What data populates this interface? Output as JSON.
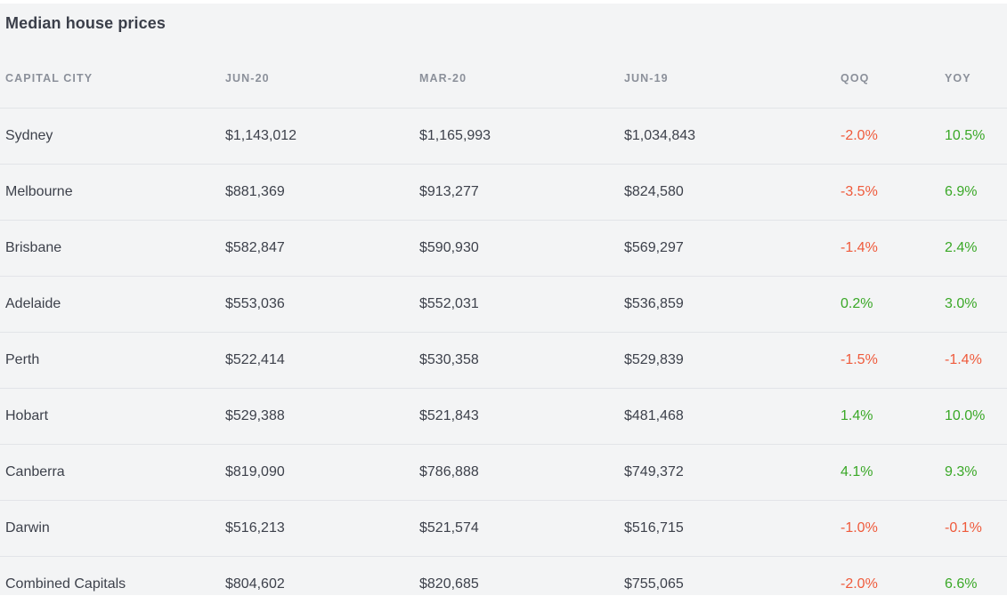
{
  "title": "Median house prices",
  "columns": {
    "city": "CAPITAL CITY",
    "jun20": "JUN-20",
    "mar20": "MAR-20",
    "jun19": "JUN-19",
    "qoq": "QOQ",
    "yoy": "YOY"
  },
  "colors": {
    "negative": "#ef5a3b",
    "positive": "#3aa827",
    "text": "#3d414b",
    "header": "#8b909a",
    "background": "#f3f4f5"
  },
  "rows": [
    {
      "city": "Sydney",
      "jun20": "$1,143,012",
      "mar20": "$1,165,993",
      "jun19": "$1,034,843",
      "qoq": "-2.0%",
      "yoy": "10.5%"
    },
    {
      "city": "Melbourne",
      "jun20": "$881,369",
      "mar20": "$913,277",
      "jun19": "$824,580",
      "qoq": "-3.5%",
      "yoy": "6.9%"
    },
    {
      "city": "Brisbane",
      "jun20": "$582,847",
      "mar20": "$590,930",
      "jun19": "$569,297",
      "qoq": "-1.4%",
      "yoy": "2.4%"
    },
    {
      "city": "Adelaide",
      "jun20": "$553,036",
      "mar20": "$552,031",
      "jun19": "$536,859",
      "qoq": "0.2%",
      "yoy": "3.0%"
    },
    {
      "city": "Perth",
      "jun20": "$522,414",
      "mar20": "$530,358",
      "jun19": "$529,839",
      "qoq": "-1.5%",
      "yoy": "-1.4%"
    },
    {
      "city": "Hobart",
      "jun20": "$529,388",
      "mar20": "$521,843",
      "jun19": "$481,468",
      "qoq": "1.4%",
      "yoy": "10.0%"
    },
    {
      "city": "Canberra",
      "jun20": "$819,090",
      "mar20": "$786,888",
      "jun19": "$749,372",
      "qoq": "4.1%",
      "yoy": "9.3%"
    },
    {
      "city": "Darwin",
      "jun20": "$516,213",
      "mar20": "$521,574",
      "jun19": "$516,715",
      "qoq": "-1.0%",
      "yoy": "-0.1%"
    },
    {
      "city": "Combined Capitals",
      "jun20": "$804,602",
      "mar20": "$820,685",
      "jun19": "$755,065",
      "qoq": "-2.0%",
      "yoy": "6.6%"
    }
  ]
}
